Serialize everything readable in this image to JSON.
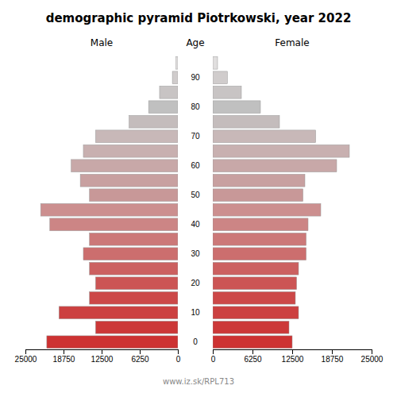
{
  "chart_data": {
    "type": "bar",
    "orientation": "horizontal",
    "title": "demographic pyramid Piotrkowski, year 2022",
    "ylabel": "Age",
    "annotations": [
      "www.iz.sk/RPL713"
    ],
    "categories": [
      "0",
      null,
      "10",
      null,
      "20",
      null,
      "30",
      null,
      "40",
      null,
      "50",
      null,
      "60",
      null,
      "70",
      null,
      "80",
      null,
      "90",
      null
    ],
    "series": [
      {
        "name": "Male",
        "colors": [
          "#cd3232",
          "#cc3838",
          "#cc4040",
          "#cc4848",
          "#cc5555",
          "#cc6060",
          "#cc6e6e",
          "#cc7878",
          "#cc8585",
          "#cc8f8f",
          "#c89898",
          "#c8a0a0",
          "#c8a8a8",
          "#c8b0b0",
          "#c8b8b8",
          "#c4bcbc",
          "#c0c0c0",
          "#c8c4c4",
          "#d0cccc",
          "#e0dede"
        ],
        "values": [
          21500,
          13500,
          19500,
          14500,
          13500,
          14500,
          15500,
          14500,
          21000,
          22500,
          14500,
          16000,
          17500,
          15500,
          13500,
          8000,
          4800,
          3000,
          900,
          300
        ]
      },
      {
        "name": "Female",
        "colors": [
          "#cd3232",
          "#cc3838",
          "#cc4040",
          "#cc4848",
          "#cc5555",
          "#cc6060",
          "#cc6e6e",
          "#cc7878",
          "#cc8585",
          "#cc8f8f",
          "#c89898",
          "#c8a0a0",
          "#c8a8a8",
          "#c8b0b0",
          "#c8b8b8",
          "#c4bcbc",
          "#c0c0c0",
          "#c8c4c4",
          "#d0cccc",
          "#e0dede"
        ],
        "values": [
          12500,
          12000,
          13500,
          13000,
          13200,
          13500,
          14700,
          14700,
          15000,
          17000,
          14200,
          14500,
          19500,
          21500,
          16200,
          10500,
          7500,
          4500,
          2300,
          750
        ]
      }
    ],
    "xlim": [
      0,
      25000
    ],
    "xticks": [
      0,
      6250,
      12500,
      18750,
      25000
    ],
    "grid": false
  }
}
